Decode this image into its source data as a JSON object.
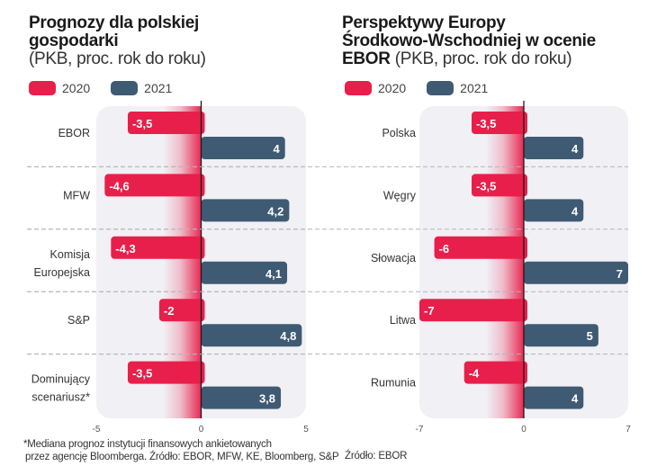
{
  "colors": {
    "series_2020": "#e81f4a",
    "series_2021": "#3f5a73",
    "panel_bg": "#f1f0f5",
    "zero_line": "#1a1a1a",
    "grid_dash": "#b5b5b5"
  },
  "legend": [
    {
      "label": "2020",
      "color_key": "series_2020"
    },
    {
      "label": "2021",
      "color_key": "series_2021"
    }
  ],
  "left": {
    "title_line1": "Prognozy dla polskiej",
    "title_line2": "gospodarki",
    "subtitle": "(PKB, proc. rok do roku)",
    "footnote_line1": "*Mediana prognoz instytucji finansowych ankietowanych",
    "footnote_line2": "przez agencję Bloomberga. Źródło: EBOR, MFW, KE, Bloomberg, S&P"
  },
  "right": {
    "title_line1": "Perspektywy Europy",
    "title_line2": "Środkowo-Wschodniej w ocenie",
    "title_bold3": "EBOR",
    "subtitle": "(PKB, proc. rok do roku)",
    "footnote_line1": "Źródło: EBOR"
  },
  "chart_data": [
    {
      "type": "bar",
      "orientation": "horizontal",
      "title": "Prognozy dla polskiej gospodarki (PKB, proc. rok do roku)",
      "categories": [
        [
          "EBOR"
        ],
        [
          "MFW"
        ],
        [
          "Komisja",
          "Europejska"
        ],
        [
          "S&P"
        ],
        [
          "Dominujący",
          "scenariusz*"
        ]
      ],
      "series": [
        {
          "name": "2020",
          "values": [
            -3.5,
            -4.6,
            -4.3,
            -2,
            -3.5
          ],
          "labels": [
            "-3,5",
            "-4,6",
            "-4,3",
            "-2",
            "-3,5"
          ]
        },
        {
          "name": "2021",
          "values": [
            4,
            4.2,
            4.1,
            4.8,
            3.8
          ],
          "labels": [
            "4",
            "4,2",
            "4,1",
            "4,8",
            "3,8"
          ]
        }
      ],
      "xlim": [
        -5,
        5
      ],
      "xticks": [
        "-5",
        "0",
        "5"
      ],
      "xlabel": "",
      "ylabel": "",
      "grid": "dashed-row-separators",
      "legend": "top-left"
    },
    {
      "type": "bar",
      "orientation": "horizontal",
      "title": "Perspektywy Europy Środkowo-Wschodniej w ocenie EBOR (PKB, proc. rok do roku)",
      "categories": [
        [
          "Polska"
        ],
        [
          "Węgry"
        ],
        [
          "Słowacja"
        ],
        [
          "Litwa"
        ],
        [
          "Rumunia"
        ]
      ],
      "series": [
        {
          "name": "2020",
          "values": [
            -3.5,
            -3.5,
            -6,
            -7,
            -4
          ],
          "labels": [
            "-3,5",
            "-3,5",
            "-6",
            "-7",
            "-4"
          ]
        },
        {
          "name": "2021",
          "values": [
            4,
            4,
            7,
            5,
            4
          ],
          "labels": [
            "4",
            "4",
            "7",
            "5",
            "4"
          ]
        }
      ],
      "xlim": [
        -7,
        7
      ],
      "xticks": [
        "-7",
        "0",
        "7"
      ],
      "xlabel": "",
      "ylabel": "",
      "grid": "dashed-row-separators",
      "legend": "top-left"
    }
  ]
}
